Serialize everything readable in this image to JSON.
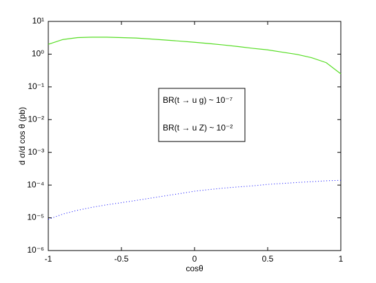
{
  "chart_data": {
    "type": "line",
    "xlabel": "cosθ",
    "ylabel": "d σ/d cos θ (pb)",
    "annotations": [
      "BR(t → u g) ~ 10⁻⁷",
      "BR(t → u Z) ~ 10⁻²"
    ],
    "x": [
      -1,
      -0.9,
      -0.8,
      -0.7,
      -0.6,
      -0.5,
      -0.4,
      -0.3,
      -0.2,
      -0.1,
      0,
      0.1,
      0.2,
      0.3,
      0.4,
      0.5,
      0.6,
      0.7,
      0.8,
      0.9,
      1
    ],
    "series": [
      {
        "color": "#55dd22",
        "style": "solid",
        "values": [
          2.0,
          2.8,
          3.2,
          3.3,
          3.3,
          3.2,
          3.1,
          2.9,
          2.7,
          2.5,
          2.3,
          2.1,
          1.9,
          1.7,
          1.5,
          1.35,
          1.15,
          0.98,
          0.78,
          0.55,
          0.25
        ]
      },
      {
        "color": "#0000ff",
        "style": "dotted",
        "values": [
          9e-06,
          1.3e-05,
          1.7e-05,
          2.1e-05,
          2.5e-05,
          2.9e-05,
          3.4e-05,
          4e-05,
          4.7e-05,
          5.5e-05,
          6.5e-05,
          7.3e-05,
          8.1e-05,
          8.8e-05,
          9.5e-05,
          0.000105,
          0.000112,
          0.00012,
          0.000127,
          0.000135,
          0.00014
        ]
      }
    ],
    "xlim": [
      -1,
      1
    ],
    "xticks": [
      -1,
      -0.5,
      0,
      0.5,
      1
    ],
    "ylim": [
      1e-06,
      10
    ],
    "ylog": true,
    "yticks": [
      {
        "value": 1e-06,
        "label": "10⁻⁶"
      },
      {
        "value": 1e-05,
        "label": "10⁻⁵"
      },
      {
        "value": 0.0001,
        "label": "10⁻⁴"
      },
      {
        "value": 0.001,
        "label": "10⁻³"
      },
      {
        "value": 0.01,
        "label": "10⁻²"
      },
      {
        "value": 0.1,
        "label": "10⁻¹"
      },
      {
        "value": 1,
        "label": "10⁰"
      },
      {
        "value": 10,
        "label": "10¹"
      }
    ]
  }
}
